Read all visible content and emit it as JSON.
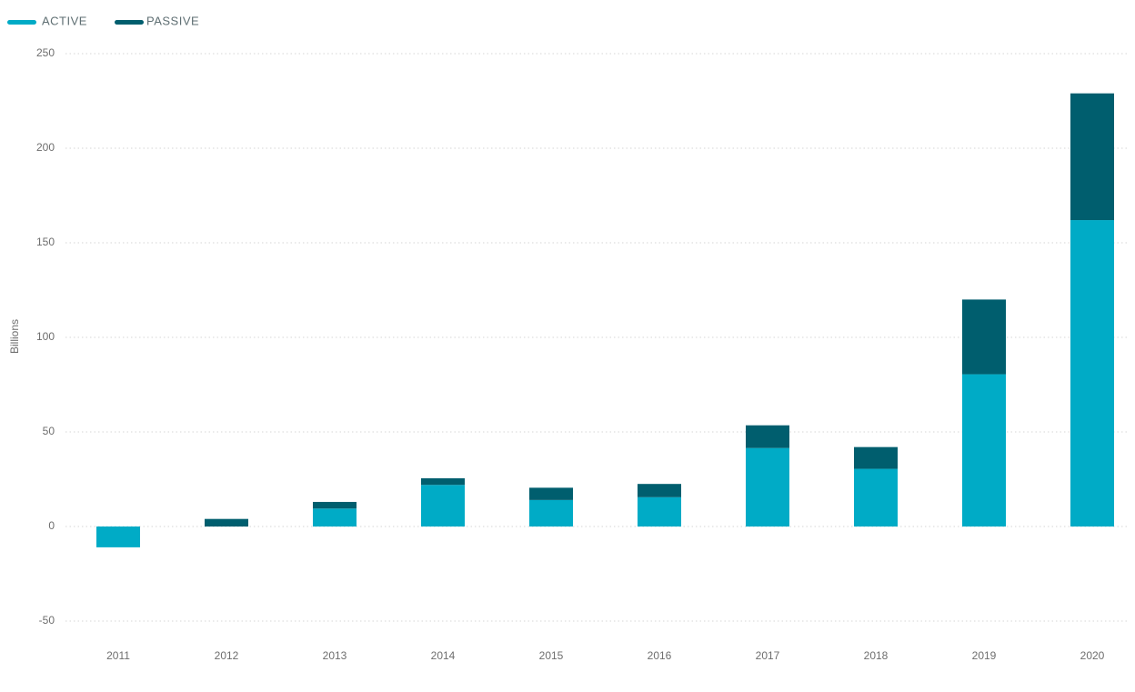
{
  "chart_data": {
    "type": "bar",
    "stacked": true,
    "categories": [
      "2011",
      "2012",
      "2013",
      "2014",
      "2015",
      "2016",
      "2017",
      "2018",
      "2019",
      "2020"
    ],
    "series": [
      {
        "name": "ACTIVE",
        "color": "#00abc6",
        "values": [
          -11,
          0,
          9.5,
          22,
          14,
          15.5,
          41.5,
          30.5,
          80.5,
          162
        ]
      },
      {
        "name": "PASSIVE",
        "color": "#005e6e",
        "values": [
          0,
          4,
          3.5,
          3.5,
          6.5,
          7,
          12,
          11.5,
          39.5,
          67
        ]
      }
    ],
    "ylabel": "Billions",
    "xlabel": "",
    "title": "",
    "ylim": [
      -50,
      250
    ],
    "yticks": [
      250,
      200,
      150,
      100,
      50,
      0,
      -50
    ],
    "grid": true,
    "legend_position": "top-left"
  }
}
